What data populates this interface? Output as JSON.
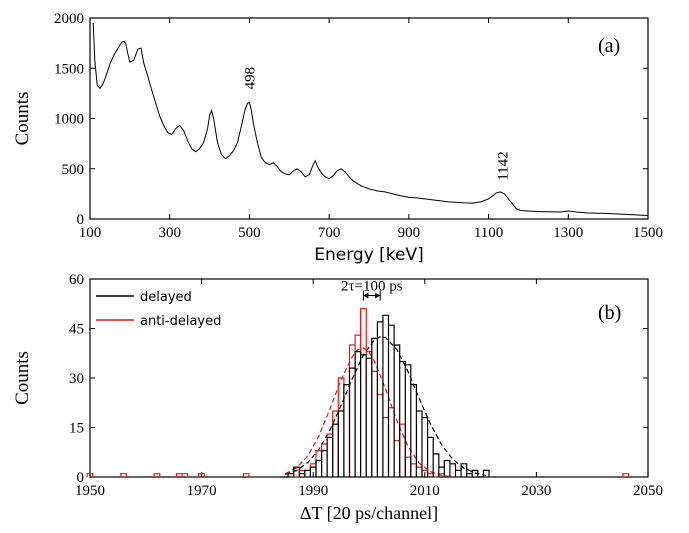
{
  "chart_data": [
    {
      "type": "line",
      "panel_label": "(a)",
      "xlabel": "Energy [keV]",
      "ylabel": "Counts",
      "xlim": [
        100,
        1500
      ],
      "ylim": [
        0,
        2000
      ],
      "x_ticks": [
        100,
        300,
        500,
        700,
        900,
        1100,
        1300,
        1500
      ],
      "y_ticks": [
        0,
        500,
        1000,
        1500,
        2000
      ],
      "annotations": [
        {
          "text": "498",
          "x": 498,
          "y": 1290
        },
        {
          "text": "1142",
          "x": 1132,
          "y": 380
        }
      ],
      "series": [
        {
          "color": "#000000",
          "x": [
            108,
            112,
            118,
            125,
            132,
            140,
            150,
            160,
            170,
            180,
            185,
            190,
            195,
            200,
            210,
            220,
            228,
            235,
            245,
            255,
            265,
            275,
            285,
            295,
            305,
            315,
            325,
            335,
            345,
            355,
            365,
            375,
            385,
            395,
            400,
            405,
            410,
            420,
            430,
            440,
            450,
            460,
            470,
            480,
            490,
            495,
            500,
            505,
            510,
            520,
            530,
            540,
            550,
            560,
            570,
            580,
            590,
            600,
            610,
            620,
            630,
            640,
            650,
            660,
            665,
            670,
            680,
            690,
            700,
            710,
            720,
            730,
            740,
            750,
            760,
            780,
            800,
            820,
            840,
            860,
            880,
            900,
            920,
            940,
            960,
            980,
            1000,
            1020,
            1040,
            1060,
            1080,
            1100,
            1110,
            1120,
            1130,
            1140,
            1150,
            1160,
            1170,
            1180,
            1200,
            1220,
            1250,
            1280,
            1300,
            1320,
            1350,
            1400,
            1450,
            1500
          ],
          "y": [
            1950,
            1580,
            1330,
            1300,
            1340,
            1420,
            1540,
            1630,
            1700,
            1760,
            1770,
            1740,
            1640,
            1560,
            1580,
            1690,
            1700,
            1550,
            1420,
            1280,
            1150,
            1020,
            930,
            860,
            840,
            900,
            930,
            880,
            780,
            700,
            670,
            700,
            760,
            900,
            1030,
            1080,
            1000,
            760,
            640,
            600,
            630,
            680,
            760,
            930,
            1100,
            1150,
            1160,
            1080,
            950,
            760,
            610,
            560,
            540,
            560,
            520,
            470,
            450,
            440,
            480,
            500,
            470,
            420,
            440,
            540,
            580,
            530,
            460,
            420,
            400,
            430,
            480,
            500,
            470,
            420,
            380,
            330,
            300,
            280,
            270,
            250,
            230,
            215,
            210,
            200,
            190,
            180,
            170,
            165,
            160,
            158,
            170,
            200,
            230,
            260,
            270,
            250,
            200,
            150,
            100,
            85,
            80,
            75,
            72,
            70,
            80,
            70,
            60,
            55,
            45,
            35
          ]
        }
      ]
    },
    {
      "type": "line",
      "panel_label": "(b)",
      "xlabel": "ΔT [20 ps/channel]",
      "ylabel": "Counts",
      "xlim": [
        1950,
        2050
      ],
      "ylim": [
        0,
        60
      ],
      "x_ticks": [
        1950,
        1970,
        1990,
        2010,
        2030,
        2050
      ],
      "y_ticks": [
        0,
        15,
        30,
        45,
        60
      ],
      "annotations": [
        {
          "text": "2τ=100 ps",
          "x": 2000.5,
          "y": 55
        }
      ],
      "legend": {
        "position": "top-left",
        "entries": [
          "delayed",
          "anti-delayed"
        ]
      },
      "series": [
        {
          "name": "delayed",
          "color": "#000000",
          "style": "histogram",
          "x": [
            1985,
            1986,
            1987,
            1988,
            1989,
            1990,
            1991,
            1992,
            1993,
            1994,
            1995,
            1996,
            1997,
            1998,
            1999,
            2000,
            2001,
            2002,
            2003,
            2004,
            2005,
            2006,
            2007,
            2008,
            2009,
            2010,
            2011,
            2012,
            2013,
            2014,
            2015,
            2016,
            2017,
            2018,
            2019,
            2020,
            2021
          ],
          "y": [
            0,
            1,
            3,
            1,
            2,
            3,
            5,
            8,
            12,
            16,
            20,
            28,
            33,
            38,
            37,
            36,
            42,
            47,
            49,
            46,
            40,
            35,
            34,
            28,
            20,
            18,
            12,
            7,
            3,
            5,
            4,
            2,
            4,
            1,
            2,
            0,
            2
          ]
        },
        {
          "name": "anti-delayed",
          "color": "#e31a1c",
          "style": "histogram",
          "x": [
            1950,
            1956,
            1962,
            1966,
            1967,
            1970,
            1978,
            1986,
            1987,
            1988,
            1989,
            1990,
            1991,
            1992,
            1993,
            1994,
            1995,
            1996,
            1997,
            1998,
            1999,
            2000,
            2001,
            2002,
            2003,
            2004,
            2005,
            2006,
            2007,
            2008,
            2009,
            2010,
            2011,
            2012,
            2013,
            2046
          ],
          "y": [
            1,
            1,
            1,
            1,
            1,
            1,
            1,
            1,
            0,
            2,
            2,
            4,
            8,
            10,
            13,
            20,
            30,
            28,
            40,
            43,
            51,
            38,
            32,
            25,
            18,
            21,
            11,
            16,
            6,
            4,
            3,
            2,
            1,
            0,
            1,
            1
          ]
        },
        {
          "name": "delayed fit",
          "color": "#000000",
          "style": "dashed",
          "x": [
            1985,
            1987,
            1989,
            1991,
            1993,
            1995,
            1997,
            1999,
            2001,
            2002,
            2003,
            2005,
            2007,
            2009,
            2011,
            2013,
            2015,
            2017,
            2019,
            2021
          ],
          "y": [
            0.8,
            2.0,
            4.3,
            8.3,
            14.2,
            21.7,
            29.8,
            37.0,
            41.6,
            42.5,
            42.2,
            38.6,
            31.9,
            23.8,
            16.1,
            9.8,
            5.4,
            2.7,
            1.2,
            0.5
          ]
        },
        {
          "name": "anti-delayed fit",
          "color": "#e31a1c",
          "style": "dashed",
          "x": [
            1985,
            1987,
            1989,
            1991,
            1993,
            1995,
            1997,
            1998,
            1999,
            2000,
            2001,
            2003,
            2005,
            2007,
            2009,
            2011,
            2013,
            2015
          ],
          "y": [
            1.0,
            2.8,
            6.3,
            12.4,
            20.6,
            29.5,
            36.5,
            38.6,
            39.1,
            37.9,
            35.0,
            26.6,
            17.0,
            9.2,
            4.2,
            1.6,
            0.5,
            0.1
          ]
        }
      ]
    }
  ]
}
